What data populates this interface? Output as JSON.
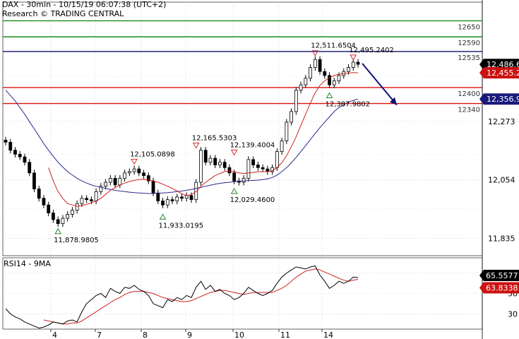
{
  "header": {
    "title_line": "DAX - 30min - 10/15/19 06:07:38 (UTC+2)",
    "source_line": "Research © TRADING CENTRAL"
  },
  "colors": {
    "background": "#ffffff",
    "candles": "#000000",
    "ma_fast": "#cc2222",
    "ma_slow": "#2a2a8a",
    "resistance": "#1a8a1a",
    "support": "#dd1111",
    "pivot": "#10106e",
    "arrow": "#10107a",
    "rsi_line": "#000000",
    "rsi_ma": "#cc2222",
    "last_price_tag": "#000000",
    "ma_tag": "#cc1111",
    "slow_ma_tag": "#1a1a7a",
    "rsi_tag": "#000000",
    "rsi_ma_tag": "#cc1111"
  },
  "chart_data": {
    "type": "candlestick",
    "symbol": "DAX",
    "timeframe": "30min",
    "x_tick_labels": [
      "4",
      "7",
      "8",
      "9",
      "10",
      "11",
      "14"
    ],
    "y_axis": {
      "ylim": [
        11770,
        12720
      ],
      "tick_labels": [
        "12,273",
        "12,054",
        "11,835"
      ],
      "tick_values": [
        12273,
        12054,
        11835
      ]
    },
    "levels": [
      {
        "label": "12650",
        "value": 12650,
        "kind": "resistance"
      },
      {
        "label": "12590",
        "value": 12590,
        "kind": "resistance"
      },
      {
        "label": "12535",
        "value": 12535,
        "kind": "pivot"
      },
      {
        "label": "12400",
        "value": 12400,
        "kind": "support"
      },
      {
        "label": "12340",
        "value": 12340,
        "kind": "support"
      }
    ],
    "price_tags": [
      {
        "label": "12,486.6",
        "value": 12486.6,
        "kind": "last_price"
      },
      {
        "label": "12,455.2",
        "value": 12455.2,
        "kind": "ma"
      },
      {
        "label": "12,356.9",
        "value": 12356.9,
        "kind": "slow_ma"
      }
    ],
    "swing_annotations": [
      {
        "label": "11,878.9805",
        "value": 11878.9805,
        "x_index": 11,
        "kind": "low"
      },
      {
        "label": "12,105.0898",
        "value": 12105.0898,
        "x_index": 27,
        "kind": "high"
      },
      {
        "label": "11,933.0195",
        "value": 11933.0195,
        "x_index": 33,
        "kind": "low"
      },
      {
        "label": "12,165.5303",
        "value": 12165.5303,
        "x_index": 40,
        "kind": "high"
      },
      {
        "label": "12,029.4600",
        "value": 12029.46,
        "x_index": 48,
        "kind": "low"
      },
      {
        "label": "12,139.4004",
        "value": 12139.4004,
        "x_index": 48,
        "kind": "high"
      },
      {
        "label": "12,511.6504",
        "value": 12511.6504,
        "x_index": 65,
        "kind": "high"
      },
      {
        "label": "12,495.2402",
        "value": 12495.2402,
        "x_index": 73,
        "kind": "high"
      },
      {
        "label": "12,387.9802",
        "value": 12387.9802,
        "x_index": 68,
        "kind": "low"
      }
    ],
    "close": [
      12195,
      12165,
      12150,
      12140,
      12120,
      12080,
      12020,
      11985,
      11960,
      11930,
      11905,
      11890,
      11910,
      11925,
      11940,
      11965,
      11985,
      11980,
      11975,
      12010,
      12030,
      12045,
      12060,
      12035,
      12060,
      12080,
      12085,
      12095,
      12080,
      12070,
      12050,
      12005,
      11975,
      11960,
      11980,
      11975,
      11990,
      11985,
      11995,
      11980,
      12045,
      12165,
      12120,
      12135,
      12110,
      12120,
      12100,
      12080,
      12050,
      12045,
      12060,
      12130,
      12110,
      12100,
      12095,
      12085,
      12100,
      12160,
      12200,
      12270,
      12310,
      12390,
      12410,
      12435,
      12475,
      12505,
      12460,
      12445,
      12410,
      12425,
      12445,
      12460,
      12475,
      12495,
      12487
    ],
    "ma_fast": [
      null,
      null,
      null,
      null,
      null,
      null,
      null,
      null,
      null,
      12100,
      12050,
      12010,
      11985,
      11965,
      11960,
      11955,
      11958,
      11962,
      11968,
      11975,
      11985,
      12000,
      12015,
      12025,
      12035,
      12042,
      12048,
      12052,
      12055,
      12056,
      12054,
      12050,
      12045,
      12038,
      12030,
      12022,
      12012,
      12002,
      11995,
      11998,
      12010,
      12030,
      12045,
      12058,
      12070,
      12078,
      12085,
      12088,
      12085,
      12080,
      12078,
      12080,
      12082,
      12084,
      12085,
      12085,
      12088,
      12100,
      12118,
      12145,
      12178,
      12215,
      12258,
      12300,
      12342,
      12380,
      12408,
      12425,
      12437,
      12445,
      12450,
      12452,
      12454,
      12456,
      12455
    ],
    "ma_slow": [
      12390,
      12370,
      12350,
      12325,
      12300,
      12272,
      12245,
      12218,
      12190,
      12165,
      12142,
      12120,
      12102,
      12085,
      12072,
      12060,
      12050,
      12042,
      12035,
      12030,
      12026,
      12022,
      12018,
      12015,
      12012,
      12010,
      12008,
      12006,
      12005,
      12004,
      12003,
      12003,
      12004,
      12005,
      12006,
      12008,
      12010,
      12012,
      12015,
      12018,
      12022,
      12026,
      12030,
      12034,
      12038,
      12041,
      12043,
      12045,
      12047,
      12049,
      12050,
      12051,
      12052,
      12053,
      12055,
      12058,
      12063,
      12072,
      12085,
      12100,
      12118,
      12138,
      12160,
      12182,
      12205,
      12228,
      12250,
      12270,
      12290,
      12310,
      12325,
      12335,
      12345,
      12352,
      12357
    ],
    "rsi": {
      "label": "RSI14 - 9MA",
      "rsi_value_label": "65.5577",
      "ma_value_label": "63.8338",
      "rsi_value": 65.5577,
      "ma_value": 63.8338,
      "tick_labels": [
        "70",
        "50",
        "30"
      ],
      "tick_values": [
        70,
        50,
        30
      ],
      "ylim": [
        15,
        85
      ],
      "values": [
        35,
        30,
        27,
        25,
        22,
        20,
        18,
        16,
        17,
        19,
        22,
        21,
        20,
        23,
        24,
        22,
        32,
        40,
        44,
        48,
        50,
        46,
        55,
        52,
        50,
        56,
        55,
        58,
        54,
        52,
        48,
        40,
        38,
        36,
        44,
        42,
        46,
        44,
        48,
        46,
        56,
        62,
        54,
        58,
        52,
        54,
        50,
        48,
        44,
        46,
        50,
        56,
        53,
        50,
        48,
        50,
        53,
        60,
        66,
        70,
        73,
        76,
        75,
        74,
        76,
        77,
        68,
        62,
        55,
        58,
        62,
        60,
        62,
        66,
        65.56
      ],
      "ma": [
        null,
        null,
        null,
        null,
        null,
        null,
        null,
        null,
        24,
        23,
        22,
        21,
        20,
        20,
        21,
        21,
        23,
        26,
        29,
        32,
        35,
        38,
        41,
        44,
        46,
        49,
        51,
        52,
        52,
        52,
        51,
        50,
        48,
        46,
        45,
        44,
        43,
        42,
        42,
        43,
        45,
        47,
        49,
        51,
        52,
        53,
        53,
        52,
        51,
        50,
        49,
        50,
        51,
        51,
        51,
        51,
        51,
        53,
        55,
        58,
        62,
        66,
        69,
        72,
        73,
        74,
        73,
        71,
        69,
        67,
        65,
        63,
        62,
        63,
        63.83
      ]
    },
    "trend_arrow": {
      "from_index": 74,
      "direction": "down",
      "target_level": 12340
    }
  }
}
